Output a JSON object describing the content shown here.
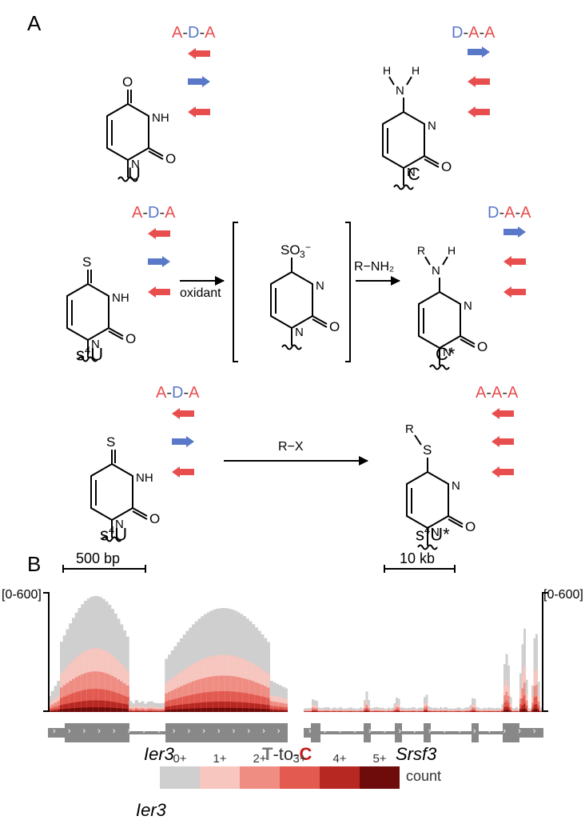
{
  "colors": {
    "acceptor_text": "#e94e4e",
    "donor_text": "#5a78c8",
    "black": "#000000",
    "gene_gray": "#888888",
    "axis_black": "#000000",
    "background": "#ffffff",
    "legend_swatches": [
      "#cfcfcf",
      "#f6c6bf",
      "#ef8d83",
      "#e35a50",
      "#b82822",
      "#6d0c0b"
    ],
    "arrow_red_stroke": "#e94e4e",
    "arrow_blue_stroke": "#5a78c8"
  },
  "panelA": {
    "label": "A",
    "row1": {
      "left": {
        "pattern": [
          "A",
          "D",
          "A"
        ],
        "arrows": [
          "left",
          "right",
          "left"
        ],
        "name": "U"
      },
      "right": {
        "pattern": [
          "D",
          "A",
          "A"
        ],
        "arrows": [
          "right",
          "left",
          "left"
        ],
        "name": "C"
      }
    },
    "row2": {
      "left": {
        "pattern": [
          "A",
          "D",
          "A"
        ],
        "arrows": [
          "left",
          "right",
          "left"
        ],
        "name": "s⁴U"
      },
      "right": {
        "pattern": [
          "D",
          "A",
          "A"
        ],
        "arrows": [
          "right",
          "left",
          "left"
        ],
        "name": "C*"
      },
      "intermediate_group": "SO₃⁻",
      "reagent1": "oxidant",
      "reagent2": "R−NH₂",
      "R_label": "R"
    },
    "row3": {
      "left": {
        "pattern": [
          "A",
          "D",
          "A"
        ],
        "arrows": [
          "left",
          "right",
          "left"
        ],
        "name": "s⁴U"
      },
      "right": {
        "pattern": [
          "A",
          "A",
          "A"
        ],
        "arrows": [
          "left",
          "left",
          "left"
        ],
        "name": "s⁴U*"
      },
      "reagent": "R−X",
      "R_label": "R"
    }
  },
  "panelB": {
    "label": "B",
    "scale_left": "500 bp",
    "scale_right": "10 kb",
    "y_range_label": "[0-600]",
    "gene_left": "Ier3",
    "gene_right": "Srsf3",
    "ttoc_T": "T",
    "ttoc_to": "-to-",
    "ttoc_C": "C",
    "legend_labels": [
      "0+",
      "1+",
      "2+",
      "3+",
      "4+",
      "5+"
    ],
    "count_label": "count",
    "left_track": {
      "type": "coverage_stacked",
      "n_bins": 80,
      "y_max": 600,
      "shape": "two exon peaks with intron dip",
      "scale_bar_frac": 0.35,
      "exons": [
        [
          0.0,
          0.07,
          "utr"
        ],
        [
          0.07,
          0.34,
          "exon"
        ],
        [
          0.34,
          0.49,
          "intron"
        ],
        [
          0.49,
          1.0,
          "exon"
        ],
        [
          0.93,
          1.0,
          "utr"
        ]
      ],
      "chevron_dir": "right"
    },
    "right_track": {
      "type": "coverage_stacked",
      "n_bins": 120,
      "y_max": 600,
      "shape": "low + sparse exon spikes right side",
      "scale_bar_frac": 0.3,
      "exons": [
        [
          0.0,
          0.03,
          "utr"
        ],
        [
          0.03,
          0.07,
          "exon"
        ],
        [
          0.25,
          0.28,
          "exon"
        ],
        [
          0.38,
          0.41,
          "exon"
        ],
        [
          0.5,
          0.53,
          "exon"
        ],
        [
          0.7,
          0.73,
          "exon"
        ],
        [
          0.83,
          0.9,
          "exon"
        ],
        [
          0.9,
          1.0,
          "utr"
        ]
      ],
      "chevron_dir": "right"
    }
  }
}
